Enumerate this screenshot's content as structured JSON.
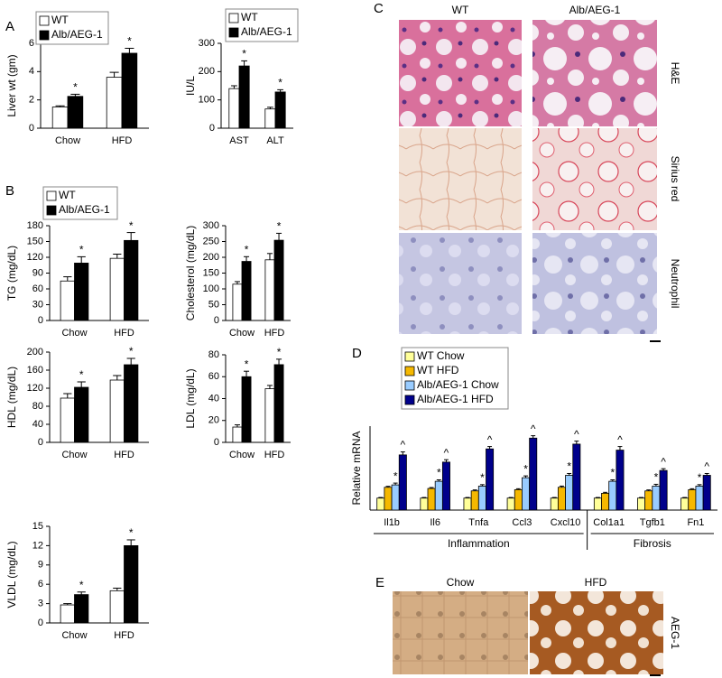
{
  "chart_data": [
    {
      "type": "bar",
      "y_label": "Liver wt (gm)",
      "categories": [
        "Chow",
        "HFD"
      ],
      "ylim": [
        0,
        6
      ],
      "yticks": [
        0,
        2,
        4,
        6
      ],
      "legend": true,
      "series": [
        {
          "name": "WT",
          "color": "#ffffff",
          "values": [
            1.5,
            3.6
          ],
          "errors": [
            0.08,
            0.35
          ]
        },
        {
          "name": "Alb/AEG-1",
          "color": "#000000",
          "values": [
            2.25,
            5.3
          ],
          "errors": [
            0.15,
            0.35
          ],
          "annotations": [
            "*",
            "*"
          ]
        }
      ]
    },
    {
      "type": "bar",
      "y_label": "IU/L",
      "categories": [
        "AST",
        "ALT"
      ],
      "ylim": [
        0,
        300
      ],
      "yticks": [
        0,
        100,
        200,
        300
      ],
      "legend": true,
      "series": [
        {
          "name": "WT",
          "color": "#ffffff",
          "values": [
            140,
            68
          ],
          "errors": [
            10,
            6
          ]
        },
        {
          "name": "Alb/AEG-1",
          "color": "#000000",
          "values": [
            220,
            128
          ],
          "errors": [
            18,
            8
          ],
          "annotations": [
            "*",
            "*"
          ]
        }
      ]
    },
    {
      "type": "bar",
      "y_label": "TG (mg/dL)",
      "categories": [
        "Chow",
        "HFD"
      ],
      "ylim": [
        0,
        180
      ],
      "yticks": [
        0,
        30,
        60,
        90,
        120,
        150,
        180
      ],
      "legend": true,
      "series": [
        {
          "name": "WT",
          "color": "#ffffff",
          "values": [
            75,
            118
          ],
          "errors": [
            8,
            8
          ]
        },
        {
          "name": "Alb/AEG-1",
          "color": "#000000",
          "values": [
            109,
            152
          ],
          "errors": [
            12,
            15
          ],
          "annotations": [
            "*",
            "*"
          ]
        }
      ]
    },
    {
      "type": "bar",
      "y_label": "Cholesterol (mg/dL)",
      "categories": [
        "Chow",
        "HFD"
      ],
      "ylim": [
        0,
        300
      ],
      "yticks": [
        0,
        50,
        100,
        150,
        200,
        250,
        300
      ],
      "legend": false,
      "series": [
        {
          "name": "WT",
          "color": "#ffffff",
          "values": [
            115,
            192
          ],
          "errors": [
            8,
            20
          ]
        },
        {
          "name": "Alb/AEG-1",
          "color": "#000000",
          "values": [
            187,
            254
          ],
          "errors": [
            15,
            22
          ],
          "annotations": [
            "*",
            "*"
          ]
        }
      ]
    },
    {
      "type": "bar",
      "y_label": "HDL (mg/dL)",
      "categories": [
        "Chow",
        "HFD"
      ],
      "ylim": [
        0,
        200
      ],
      "yticks": [
        0,
        40,
        80,
        120,
        160,
        200
      ],
      "legend": false,
      "series": [
        {
          "name": "WT",
          "color": "#ffffff",
          "values": [
            98,
            138
          ],
          "errors": [
            10,
            10
          ]
        },
        {
          "name": "Alb/AEG-1",
          "color": "#000000",
          "values": [
            122,
            172
          ],
          "errors": [
            12,
            14
          ],
          "annotations": [
            "*",
            "*"
          ]
        }
      ]
    },
    {
      "type": "bar",
      "y_label": "LDL (mg/dL)",
      "categories": [
        "Chow",
        "HFD"
      ],
      "ylim": [
        0,
        80
      ],
      "yticks": [
        0,
        20,
        40,
        60,
        80
      ],
      "legend": false,
      "series": [
        {
          "name": "WT",
          "color": "#ffffff",
          "values": [
            14,
            49
          ],
          "errors": [
            2,
            3
          ]
        },
        {
          "name": "Alb/AEG-1",
          "color": "#000000",
          "values": [
            60,
            71
          ],
          "errors": [
            5,
            5
          ],
          "annotations": [
            "*",
            "*"
          ]
        }
      ]
    },
    {
      "type": "bar",
      "y_label": "VLDL (mg/dL)",
      "categories": [
        "Chow",
        "HFD"
      ],
      "ylim": [
        0,
        15
      ],
      "yticks": [
        0,
        3,
        6,
        9,
        12,
        15
      ],
      "legend": false,
      "series": [
        {
          "name": "WT",
          "color": "#ffffff",
          "values": [
            2.8,
            5
          ],
          "errors": [
            0.2,
            0.4
          ]
        },
        {
          "name": "Alb/AEG-1",
          "color": "#000000",
          "values": [
            4.4,
            12
          ],
          "errors": [
            0.4,
            0.9
          ],
          "annotations": [
            "*",
            "*"
          ]
        }
      ]
    },
    {
      "type": "bar",
      "y_label": "Relative mRNA",
      "categories": [
        "Il1b",
        "Il6",
        "Tnfa",
        "Ccl3",
        "Cxcl10",
        "Col1a1",
        "Tgfb1",
        "Fn1"
      ],
      "ylim": [
        0,
        7
      ],
      "yticks": [],
      "legend": true,
      "group_labels": [
        "Inflammation",
        "Fibrosis"
      ],
      "series": [
        {
          "name": "WT Chow",
          "color": "#ffff99",
          "values": [
            1,
            1,
            1,
            1,
            1,
            1,
            1,
            1
          ],
          "errors": [
            0.05,
            0.05,
            0.05,
            0.05,
            0.05,
            0.05,
            0.05,
            0.05
          ]
        },
        {
          "name": "WT HFD",
          "color": "#f5b800",
          "values": [
            1.9,
            1.8,
            1.6,
            1.7,
            1.9,
            1.4,
            1.6,
            1.7
          ],
          "errors": [
            0.08,
            0.08,
            0.08,
            0.08,
            0.1,
            0.08,
            0.08,
            0.08
          ]
        },
        {
          "name": "Alb/AEG-1 Chow",
          "color": "#99ccff",
          "values": [
            2.1,
            2.4,
            2.0,
            2.7,
            2.9,
            2.4,
            2.0,
            2.0
          ],
          "errors": [
            0.15,
            0.12,
            0.12,
            0.15,
            0.15,
            0.12,
            0.15,
            0.12
          ],
          "annotations": [
            "*",
            "*",
            "*",
            "*",
            "*",
            "*",
            "*",
            "*"
          ]
        },
        {
          "name": "Alb/AEG-1 HFD",
          "color": "#00008b",
          "values": [
            4.6,
            4.0,
            5.1,
            6.0,
            5.5,
            5.0,
            3.3,
            2.9
          ],
          "errors": [
            0.25,
            0.2,
            0.2,
            0.2,
            0.25,
            0.3,
            0.15,
            0.15
          ],
          "annotations": [
            "^",
            "^",
            "^",
            "^",
            "^",
            "^",
            "^",
            "^"
          ]
        }
      ]
    }
  ],
  "panel_labels": [
    "A",
    "B",
    "C",
    "D",
    "E"
  ],
  "histology": {
    "C": {
      "columns": [
        "WT",
        "Alb/AEG-1"
      ],
      "rows": [
        "H&E",
        "Sirius red",
        "Neutrophil"
      ]
    },
    "E": {
      "columns": [
        "Chow",
        "HFD"
      ],
      "rows": [
        "AEG-1"
      ]
    }
  }
}
